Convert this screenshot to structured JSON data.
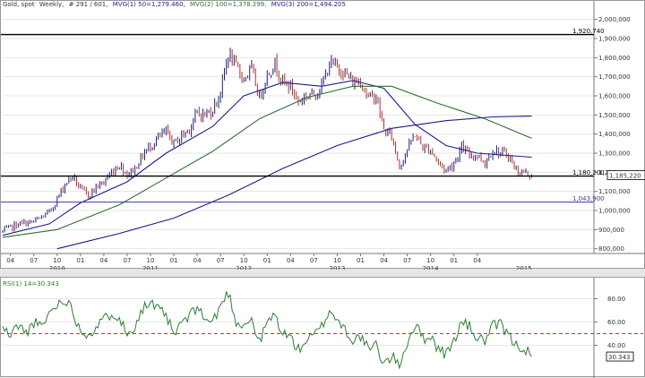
{
  "header": {
    "symbol": "Gold, spot",
    "interval": "Weekly,",
    "bars": "# 291 / 601,",
    "ma1": "MVG(1) 50=1,279.460,",
    "ma2": "MVG(2) 100=1,378.299,",
    "ma3": "MVG(3) 200=1,494.205",
    "rsi_title": "RSI(1) 14=30.343"
  },
  "colors": {
    "candle_up": "#1f1f7a",
    "candle_down": "#b03030",
    "ma1": "#1c1c8c",
    "ma2": "#2f6f2f",
    "ma3": "#1c1c8c",
    "hline_black": "#000000",
    "hline_blue": "#3a3aa8",
    "rsi_line": "#2e7d32",
    "rsi_level": "#c0392b",
    "grid": "#e6e6e6"
  },
  "chart_data": [
    {
      "type": "candlestick",
      "title": "Gold, spot, Weekly",
      "ylim": [
        775,
        2050
      ],
      "y_ticks": [
        "800,000",
        "900,000",
        "1,000,000",
        "1,100,000",
        "1,200,000",
        "1,300,000",
        "1,400,000",
        "1,500,000",
        "1,600,000",
        "1,700,000",
        "1,800,000",
        "1,900,000",
        "2,000,000"
      ],
      "y_tick_values": [
        800,
        900,
        1000,
        1100,
        1200,
        1300,
        1400,
        1500,
        1600,
        1700,
        1800,
        1900,
        2000
      ],
      "x_ticks": [
        "04",
        "07",
        "10",
        "01",
        "04",
        "07",
        "10",
        "01",
        "04",
        "07",
        "10",
        "01",
        "04",
        "07",
        "10",
        "01",
        "04",
        "07",
        "10",
        "01",
        "04"
      ],
      "x_tick_dates": [
        "2009-04",
        "2009-07",
        "2009-10",
        "2010-01",
        "2010-04",
        "2010-07",
        "2010-10",
        "2011-01",
        "2011-04",
        "2011-07",
        "2011-10",
        "2012-01",
        "2012-04",
        "2012-07",
        "2012-10",
        "2013-01",
        "2013-04",
        "2013-07",
        "2013-10",
        "2014-01",
        "2014-04"
      ],
      "year_labels": [
        "2010",
        "2011",
        "2012",
        "2013",
        "2014",
        "2015"
      ],
      "year_label_dates": [
        "2009-10",
        "2010-10",
        "2011-10",
        "2012-10",
        "2013-10",
        "2014-10"
      ],
      "horizontal_lines": [
        {
          "label": "1,920,740",
          "value": 1920.74,
          "color": "black"
        },
        {
          "label": "1,180,200",
          "value": 1180.2,
          "color": "black"
        },
        {
          "label": "1,043,900",
          "value": 1043.9,
          "color": "blue"
        }
      ],
      "last_value_label": "1,185,220",
      "last_value": 1185.22,
      "price_path": [
        {
          "date": "2009-03",
          "v": 890
        },
        {
          "date": "2009-05",
          "v": 930
        },
        {
          "date": "2009-07",
          "v": 940
        },
        {
          "date": "2009-09",
          "v": 990
        },
        {
          "date": "2009-10",
          "v": 1060
        },
        {
          "date": "2009-11",
          "v": 1140
        },
        {
          "date": "2009-12",
          "v": 1180
        },
        {
          "date": "2010-01",
          "v": 1110
        },
        {
          "date": "2010-02",
          "v": 1080
        },
        {
          "date": "2010-03",
          "v": 1120
        },
        {
          "date": "2010-04",
          "v": 1150
        },
        {
          "date": "2010-05",
          "v": 1200
        },
        {
          "date": "2010-06",
          "v": 1240
        },
        {
          "date": "2010-07",
          "v": 1190
        },
        {
          "date": "2010-08",
          "v": 1220
        },
        {
          "date": "2010-09",
          "v": 1290
        },
        {
          "date": "2010-10",
          "v": 1340
        },
        {
          "date": "2010-11",
          "v": 1380
        },
        {
          "date": "2010-12",
          "v": 1410
        },
        {
          "date": "2011-01",
          "v": 1350
        },
        {
          "date": "2011-02",
          "v": 1390
        },
        {
          "date": "2011-03",
          "v": 1430
        },
        {
          "date": "2011-04",
          "v": 1510
        },
        {
          "date": "2011-05",
          "v": 1500
        },
        {
          "date": "2011-06",
          "v": 1530
        },
        {
          "date": "2011-07",
          "v": 1620
        },
        {
          "date": "2011-08",
          "v": 1820
        },
        {
          "date": "2011-09",
          "v": 1750
        },
        {
          "date": "2011-10",
          "v": 1690
        },
        {
          "date": "2011-11",
          "v": 1740
        },
        {
          "date": "2011-12",
          "v": 1590
        },
        {
          "date": "2012-01",
          "v": 1710
        },
        {
          "date": "2012-02",
          "v": 1770
        },
        {
          "date": "2012-03",
          "v": 1670
        },
        {
          "date": "2012-04",
          "v": 1650
        },
        {
          "date": "2012-05",
          "v": 1570
        },
        {
          "date": "2012-06",
          "v": 1600
        },
        {
          "date": "2012-07",
          "v": 1610
        },
        {
          "date": "2012-08",
          "v": 1650
        },
        {
          "date": "2012-09",
          "v": 1770
        },
        {
          "date": "2012-10",
          "v": 1750
        },
        {
          "date": "2012-11",
          "v": 1720
        },
        {
          "date": "2012-12",
          "v": 1670
        },
        {
          "date": "2013-01",
          "v": 1680
        },
        {
          "date": "2013-02",
          "v": 1590
        },
        {
          "date": "2013-03",
          "v": 1600
        },
        {
          "date": "2013-04",
          "v": 1420
        },
        {
          "date": "2013-05",
          "v": 1390
        },
        {
          "date": "2013-06",
          "v": 1230
        },
        {
          "date": "2013-07",
          "v": 1320
        },
        {
          "date": "2013-08",
          "v": 1400
        },
        {
          "date": "2013-09",
          "v": 1330
        },
        {
          "date": "2013-10",
          "v": 1320
        },
        {
          "date": "2013-11",
          "v": 1250
        },
        {
          "date": "2013-12",
          "v": 1210
        },
        {
          "date": "2014-01",
          "v": 1250
        },
        {
          "date": "2014-02",
          "v": 1330
        },
        {
          "date": "2014-03",
          "v": 1290
        },
        {
          "date": "2014-04",
          "v": 1290
        },
        {
          "date": "2014-05",
          "v": 1250
        },
        {
          "date": "2014-06",
          "v": 1320
        },
        {
          "date": "2014-07",
          "v": 1300
        },
        {
          "date": "2014-08",
          "v": 1290
        },
        {
          "date": "2014-09",
          "v": 1210
        },
        {
          "date": "2014-10",
          "v": 1200
        },
        {
          "date": "2014-11",
          "v": 1185
        }
      ],
      "series": [
        {
          "name": "MVG(1) 50",
          "values": [
            {
              "date": "2009-03",
              "v": 870
            },
            {
              "date": "2009-09",
              "v": 930
            },
            {
              "date": "2010-01",
              "v": 1040
            },
            {
              "date": "2010-07",
              "v": 1150
            },
            {
              "date": "2010-12",
              "v": 1300
            },
            {
              "date": "2011-06",
              "v": 1440
            },
            {
              "date": "2011-10",
              "v": 1600
            },
            {
              "date": "2012-03",
              "v": 1670
            },
            {
              "date": "2012-08",
              "v": 1650
            },
            {
              "date": "2012-12",
              "v": 1680
            },
            {
              "date": "2013-04",
              "v": 1640
            },
            {
              "date": "2013-08",
              "v": 1450
            },
            {
              "date": "2013-12",
              "v": 1340
            },
            {
              "date": "2014-04",
              "v": 1300
            },
            {
              "date": "2014-11",
              "v": 1279
            }
          ]
        },
        {
          "name": "MVG(2) 100",
          "values": [
            {
              "date": "2009-03",
              "v": 860
            },
            {
              "date": "2009-10",
              "v": 900
            },
            {
              "date": "2010-06",
              "v": 1030
            },
            {
              "date": "2010-12",
              "v": 1170
            },
            {
              "date": "2011-06",
              "v": 1310
            },
            {
              "date": "2011-12",
              "v": 1480
            },
            {
              "date": "2012-06",
              "v": 1590
            },
            {
              "date": "2012-12",
              "v": 1650
            },
            {
              "date": "2013-05",
              "v": 1650
            },
            {
              "date": "2013-11",
              "v": 1560
            },
            {
              "date": "2014-05",
              "v": 1480
            },
            {
              "date": "2014-11",
              "v": 1378
            }
          ]
        },
        {
          "name": "MVG(3) 200",
          "values": [
            {
              "date": "2009-10",
              "v": 800
            },
            {
              "date": "2010-06",
              "v": 880
            },
            {
              "date": "2011-01",
              "v": 960
            },
            {
              "date": "2011-08",
              "v": 1080
            },
            {
              "date": "2012-03",
              "v": 1220
            },
            {
              "date": "2012-10",
              "v": 1340
            },
            {
              "date": "2013-05",
              "v": 1430
            },
            {
              "date": "2013-12",
              "v": 1470
            },
            {
              "date": "2014-06",
              "v": 1490
            },
            {
              "date": "2014-11",
              "v": 1494
            }
          ]
        }
      ]
    },
    {
      "type": "line",
      "title": "RSI(1) 14=30.343",
      "ylim": [
        15,
        95
      ],
      "y_ticks": [
        "40.00",
        "60.00",
        "80.00"
      ],
      "y_tick_values": [
        40,
        60,
        80
      ],
      "reference_level": 50,
      "last_value_label": "30.343",
      "last_value": 30.343,
      "series": [
        {
          "name": "RSI(1) 14",
          "values": [
            {
              "date": "2009-03",
              "v": 55
            },
            {
              "date": "2009-04",
              "v": 48
            },
            {
              "date": "2009-05",
              "v": 58
            },
            {
              "date": "2009-06",
              "v": 50
            },
            {
              "date": "2009-07",
              "v": 60
            },
            {
              "date": "2009-08",
              "v": 55
            },
            {
              "date": "2009-09",
              "v": 68
            },
            {
              "date": "2009-10",
              "v": 75
            },
            {
              "date": "2009-11",
              "v": 80
            },
            {
              "date": "2009-12",
              "v": 70
            },
            {
              "date": "2010-01",
              "v": 52
            },
            {
              "date": "2010-02",
              "v": 50
            },
            {
              "date": "2010-03",
              "v": 55
            },
            {
              "date": "2010-04",
              "v": 62
            },
            {
              "date": "2010-05",
              "v": 68
            },
            {
              "date": "2010-06",
              "v": 65
            },
            {
              "date": "2010-07",
              "v": 48
            },
            {
              "date": "2010-08",
              "v": 58
            },
            {
              "date": "2010-09",
              "v": 72
            },
            {
              "date": "2010-10",
              "v": 76
            },
            {
              "date": "2010-11",
              "v": 70
            },
            {
              "date": "2010-12",
              "v": 66
            },
            {
              "date": "2011-01",
              "v": 48
            },
            {
              "date": "2011-02",
              "v": 60
            },
            {
              "date": "2011-03",
              "v": 64
            },
            {
              "date": "2011-04",
              "v": 74
            },
            {
              "date": "2011-05",
              "v": 62
            },
            {
              "date": "2011-06",
              "v": 60
            },
            {
              "date": "2011-07",
              "v": 74
            },
            {
              "date": "2011-08",
              "v": 86
            },
            {
              "date": "2011-09",
              "v": 60
            },
            {
              "date": "2011-10",
              "v": 58
            },
            {
              "date": "2011-11",
              "v": 62
            },
            {
              "date": "2011-12",
              "v": 42
            },
            {
              "date": "2012-01",
              "v": 60
            },
            {
              "date": "2012-02",
              "v": 66
            },
            {
              "date": "2012-03",
              "v": 50
            },
            {
              "date": "2012-04",
              "v": 47
            },
            {
              "date": "2012-05",
              "v": 36
            },
            {
              "date": "2012-06",
              "v": 44
            },
            {
              "date": "2012-07",
              "v": 48
            },
            {
              "date": "2012-08",
              "v": 56
            },
            {
              "date": "2012-09",
              "v": 70
            },
            {
              "date": "2012-10",
              "v": 62
            },
            {
              "date": "2012-11",
              "v": 54
            },
            {
              "date": "2012-12",
              "v": 44
            },
            {
              "date": "2013-01",
              "v": 48
            },
            {
              "date": "2013-02",
              "v": 36
            },
            {
              "date": "2013-03",
              "v": 40
            },
            {
              "date": "2013-04",
              "v": 24
            },
            {
              "date": "2013-05",
              "v": 30
            },
            {
              "date": "2013-06",
              "v": 24
            },
            {
              "date": "2013-07",
              "v": 42
            },
            {
              "date": "2013-08",
              "v": 58
            },
            {
              "date": "2013-09",
              "v": 46
            },
            {
              "date": "2013-10",
              "v": 48
            },
            {
              "date": "2013-11",
              "v": 37
            },
            {
              "date": "2013-12",
              "v": 32
            },
            {
              "date": "2014-01",
              "v": 44
            },
            {
              "date": "2014-02",
              "v": 60
            },
            {
              "date": "2014-03",
              "v": 56
            },
            {
              "date": "2014-04",
              "v": 46
            },
            {
              "date": "2014-05",
              "v": 44
            },
            {
              "date": "2014-06",
              "v": 56
            },
            {
              "date": "2014-07",
              "v": 58
            },
            {
              "date": "2014-08",
              "v": 48
            },
            {
              "date": "2014-09",
              "v": 40
            },
            {
              "date": "2014-10",
              "v": 38
            },
            {
              "date": "2014-11",
              "v": 30.343
            }
          ]
        }
      ]
    }
  ]
}
